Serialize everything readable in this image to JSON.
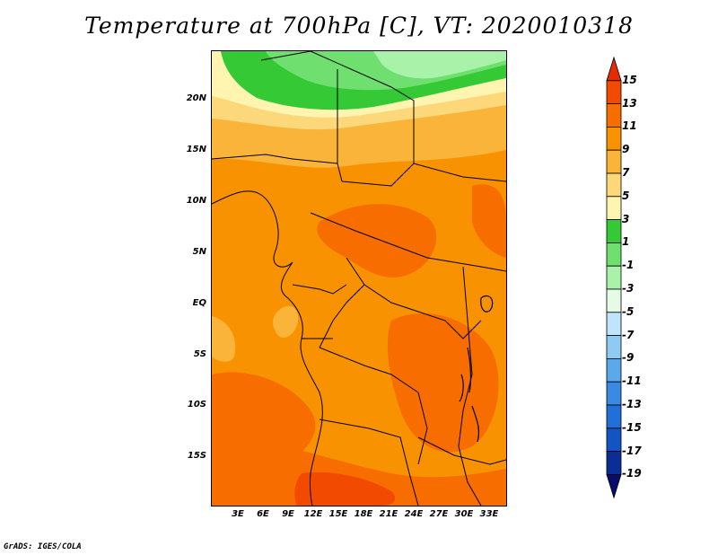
{
  "title": "Temperature at 700hPa [C], VT: 2020010318",
  "credit": "GrADS: IGES/COLA",
  "map": {
    "lat_labels": [
      "20N",
      "15N",
      "10N",
      "5N",
      "EQ",
      "5S",
      "10S",
      "15S"
    ],
    "lon_labels": [
      "3E",
      "6E",
      "9E",
      "12E",
      "15E",
      "18E",
      "21E",
      "24E",
      "27E",
      "30E",
      "33E"
    ]
  },
  "colorbar": {
    "labels": [
      "15",
      "13",
      "11",
      "9",
      "7",
      "5",
      "3",
      "1",
      "-1",
      "-3",
      "-5",
      "-7",
      "-9",
      "-11",
      "-13",
      "-15",
      "-17",
      "-19"
    ],
    "colors": [
      "#e62b00",
      "#f24a00",
      "#f86d00",
      "#f99200",
      "#fab43a",
      "#fdd87a",
      "#fff4b0",
      "#35c935",
      "#6fe06f",
      "#a9f2a9",
      "#e6fbe6",
      "#bfe4fb",
      "#8fcaf2",
      "#5ba9ea",
      "#3a8ae3",
      "#216fd9",
      "#1254c2",
      "#0a2e96",
      "#060d6b"
    ]
  }
}
